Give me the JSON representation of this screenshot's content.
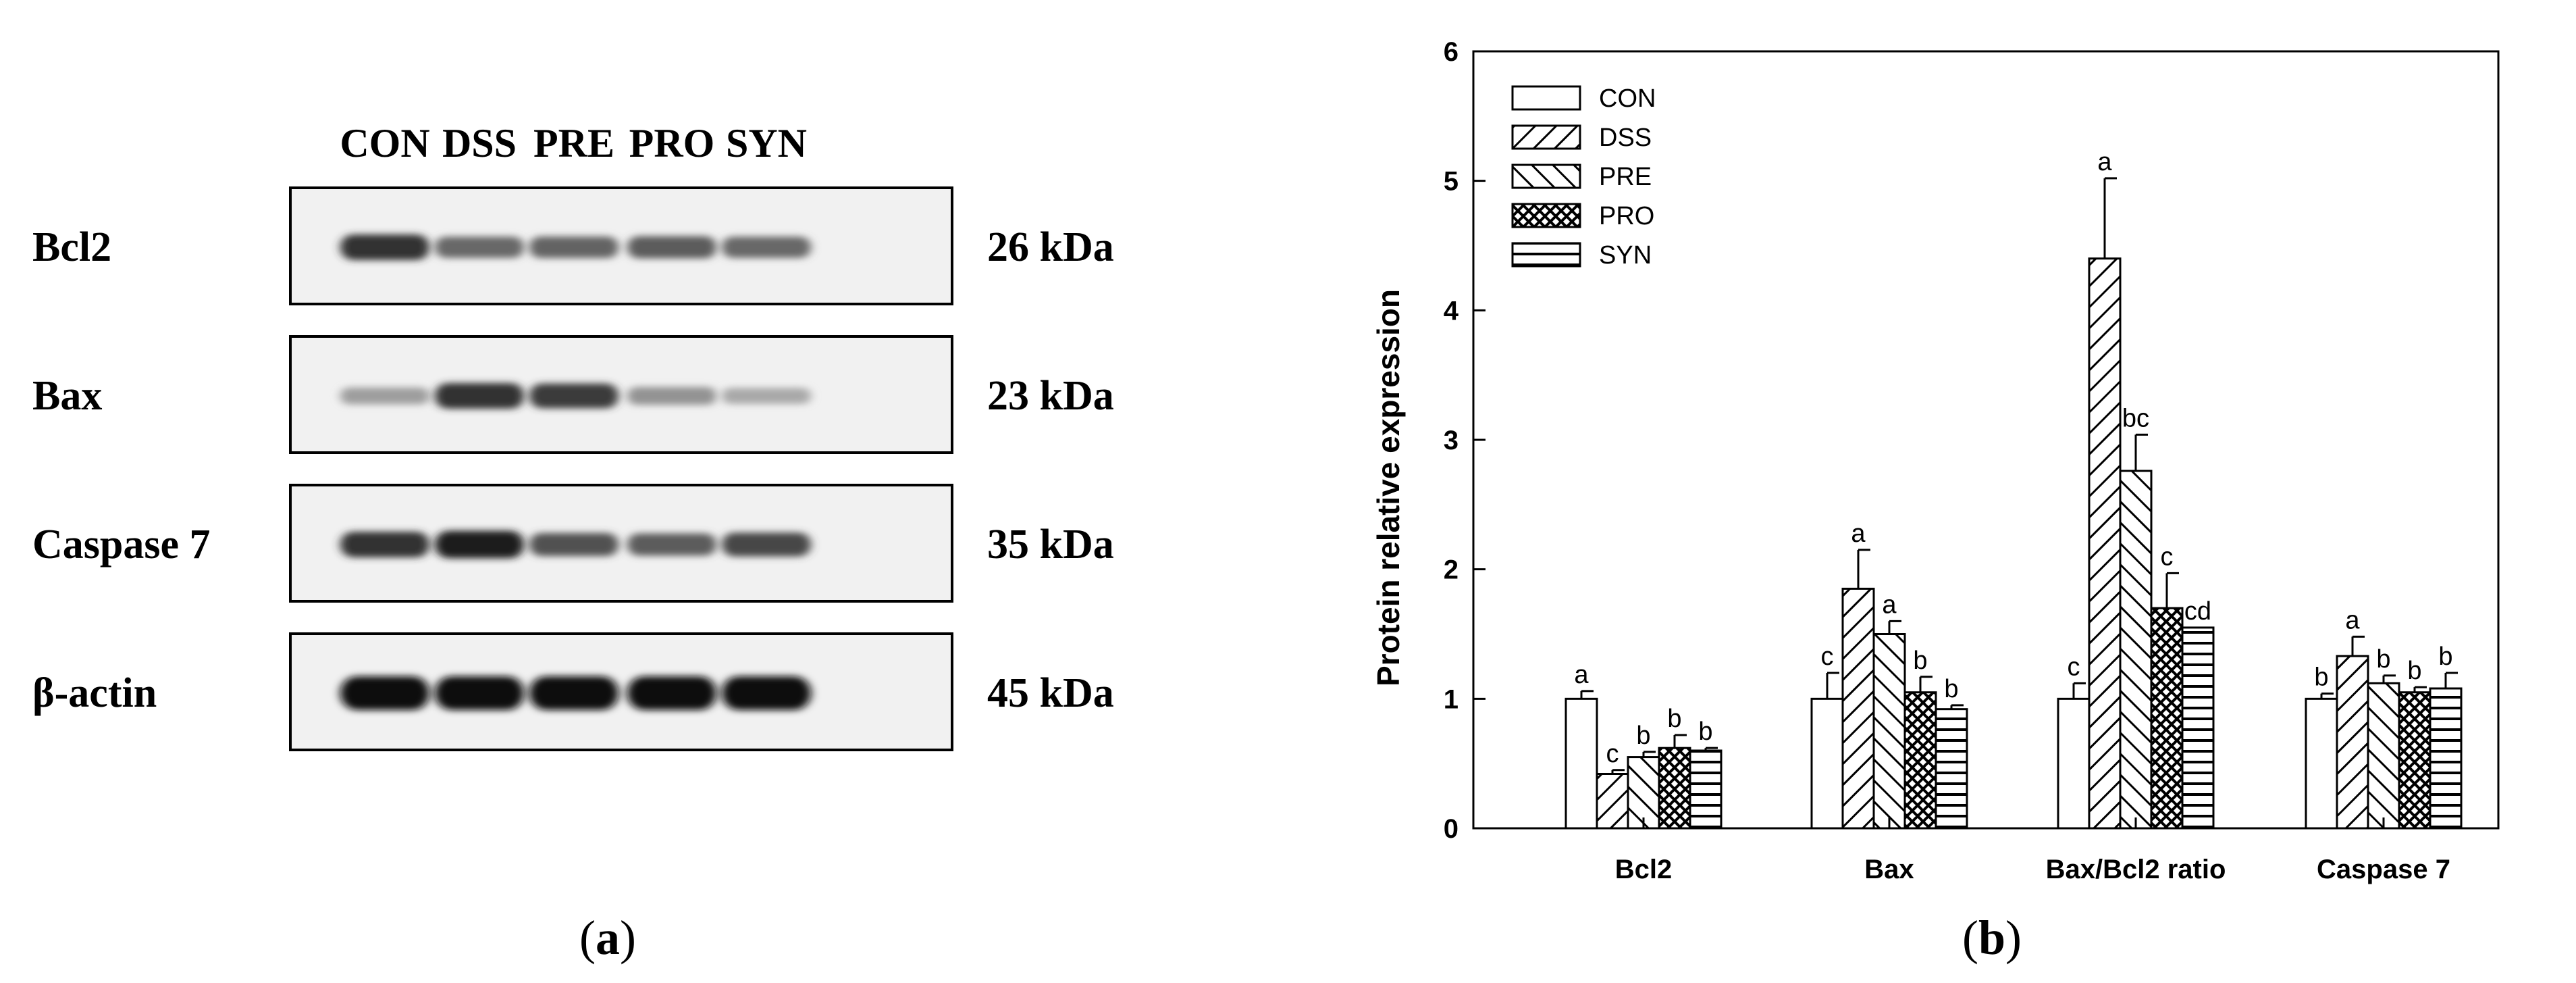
{
  "panel_a": {
    "label_open": "(",
    "label_letter": "a",
    "label_close": ")",
    "lanes": [
      "CON",
      "DSS",
      "PRE",
      "PRO",
      "SYN"
    ],
    "rows": [
      {
        "protein": "Bcl2",
        "size": "26 kDa",
        "intensity": [
          0.85,
          0.6,
          0.62,
          0.65,
          0.6
        ]
      },
      {
        "protein": "Bax",
        "size": "23 kDa",
        "intensity": [
          0.35,
          0.85,
          0.8,
          0.4,
          0.3
        ]
      },
      {
        "protein": "Caspase 7",
        "size": "35 kDa",
        "intensity": [
          0.85,
          0.95,
          0.7,
          0.65,
          0.75
        ]
      },
      {
        "protein": "β-actin",
        "size": "45 kDa",
        "intensity": [
          1.0,
          1.0,
          1.0,
          1.0,
          1.0
        ]
      }
    ]
  },
  "panel_b": {
    "label_open": "(",
    "label_letter": "b",
    "label_close": ")"
  },
  "chart_data": {
    "type": "bar",
    "title": "",
    "xlabel": "",
    "ylabel": "Protein relative expression",
    "ylim": [
      0,
      6
    ],
    "yticks": [
      "0",
      "1",
      "2",
      "3",
      "4",
      "5",
      "6"
    ],
    "categories": [
      "Bcl2",
      "Bax",
      "Bax/Bcl2 ratio",
      "Caspase 7"
    ],
    "legend_position": "top-left",
    "grid": false,
    "series": [
      {
        "name": "CON",
        "pattern": "blank",
        "values": [
          1.0,
          1.0,
          1.0,
          1.0
        ],
        "errors": [
          0.06,
          0.2,
          0.12,
          0.04
        ],
        "letters": [
          "a",
          "c",
          "c",
          "b"
        ]
      },
      {
        "name": "DSS",
        "pattern": "hatch-right",
        "values": [
          0.42,
          1.85,
          4.4,
          1.33
        ],
        "errors": [
          0.03,
          0.3,
          0.62,
          0.15
        ],
        "letters": [
          "c",
          "a",
          "a",
          "a"
        ]
      },
      {
        "name": "PRE",
        "pattern": "hatch-left",
        "values": [
          0.55,
          1.5,
          2.76,
          1.12
        ],
        "errors": [
          0.04,
          0.1,
          0.28,
          0.06
        ],
        "letters": [
          "b",
          "a",
          "bc",
          "b"
        ]
      },
      {
        "name": "PRO",
        "pattern": "crosshatch",
        "values": [
          0.62,
          1.05,
          1.7,
          1.05
        ],
        "errors": [
          0.1,
          0.12,
          0.27,
          0.04
        ],
        "letters": [
          "b",
          "b",
          "c",
          "b"
        ]
      },
      {
        "name": "SYN",
        "pattern": "horizontal",
        "values": [
          0.6,
          0.92,
          1.55,
          1.08
        ],
        "errors": [
          0.02,
          0.03,
          0.0,
          0.12
        ],
        "letters": [
          "b",
          "b",
          "cd",
          "b"
        ]
      }
    ]
  }
}
